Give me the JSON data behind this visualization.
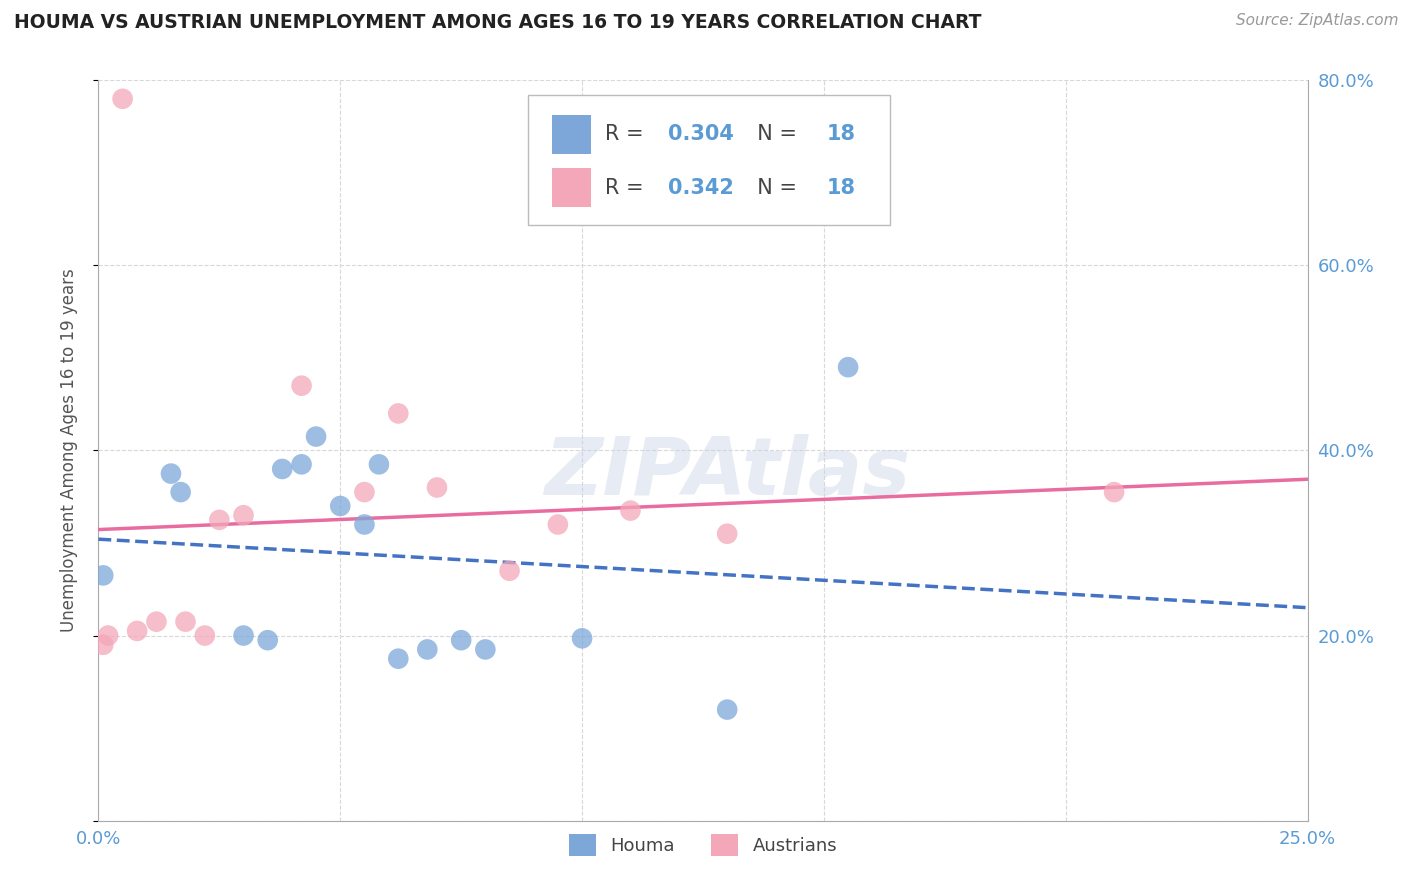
{
  "title": "HOUMA VS AUSTRIAN UNEMPLOYMENT AMONG AGES 16 TO 19 YEARS CORRELATION CHART",
  "source": "Source: ZipAtlas.com",
  "ylabel": "Unemployment Among Ages 16 to 19 years",
  "xmin": 0.0,
  "xmax": 0.25,
  "ymin": 0.0,
  "ymax": 0.8,
  "x_ticks": [
    0.0,
    0.05,
    0.1,
    0.15,
    0.2,
    0.25
  ],
  "x_tick_labels": [
    "0.0%",
    "",
    "",
    "",
    "",
    "25.0%"
  ],
  "y_ticks": [
    0.0,
    0.2,
    0.4,
    0.6,
    0.8
  ],
  "y_tick_labels": [
    "",
    "20.0%",
    "40.0%",
    "60.0%",
    "80.0%"
  ],
  "houma_x": [
    0.001,
    0.015,
    0.017,
    0.03,
    0.035,
    0.038,
    0.042,
    0.045,
    0.05,
    0.055,
    0.058,
    0.062,
    0.068,
    0.075,
    0.08,
    0.1,
    0.13,
    0.155
  ],
  "houma_y": [
    0.265,
    0.375,
    0.355,
    0.2,
    0.195,
    0.38,
    0.385,
    0.415,
    0.34,
    0.32,
    0.385,
    0.175,
    0.185,
    0.195,
    0.185,
    0.197,
    0.12,
    0.49
  ],
  "austrians_x": [
    0.001,
    0.002,
    0.008,
    0.012,
    0.018,
    0.022,
    0.025,
    0.03,
    0.042,
    0.055,
    0.062,
    0.07,
    0.085,
    0.095,
    0.11,
    0.13,
    0.21,
    0.005
  ],
  "austrians_y": [
    0.19,
    0.2,
    0.205,
    0.215,
    0.215,
    0.2,
    0.325,
    0.33,
    0.47,
    0.355,
    0.44,
    0.36,
    0.27,
    0.32,
    0.335,
    0.31,
    0.355,
    0.78
  ],
  "houma_color": "#7da7d9",
  "austrians_color": "#f4a7b9",
  "houma_line_color": "#4472c4",
  "austrians_line_color": "#e86ca0",
  "houma_R": "0.304",
  "houma_N": "18",
  "austrians_R": "0.342",
  "austrians_N": "18",
  "legend_label_houma": "Houma",
  "legend_label_austrians": "Austrians",
  "watermark": "ZIPAtlas",
  "background_color": "#ffffff",
  "grid_color": "#d8d8d8"
}
